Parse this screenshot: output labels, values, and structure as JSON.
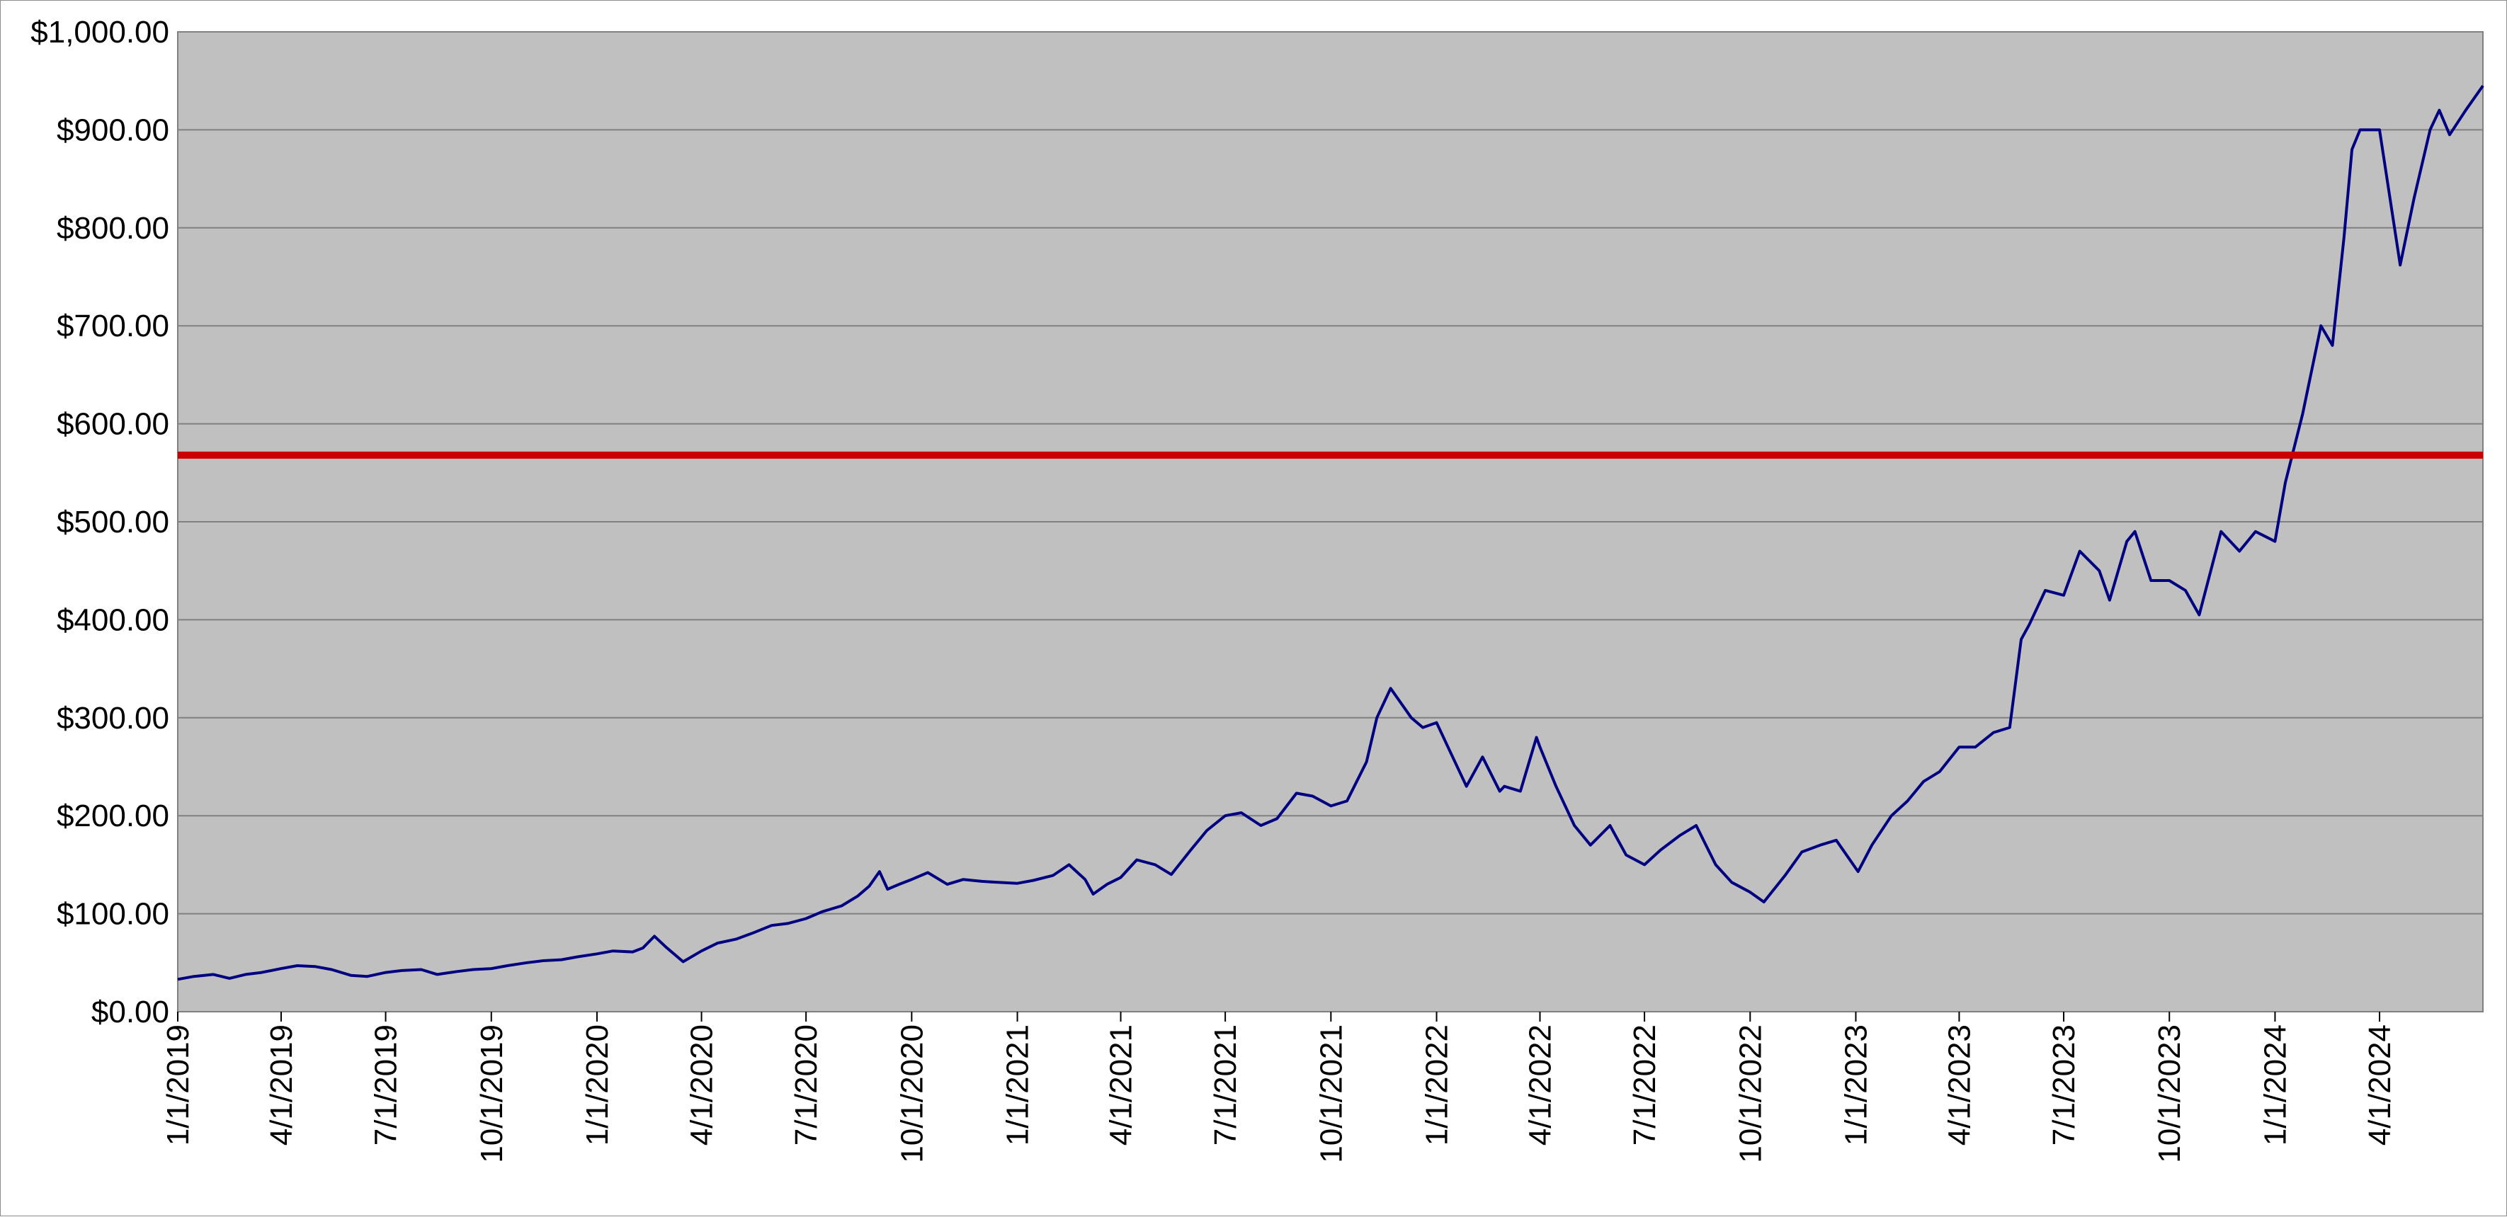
{
  "chart_data": {
    "type": "line",
    "title": "",
    "xlabel": "",
    "ylabel": "",
    "x_range": [
      "1/1/2019",
      "6/30/2024"
    ],
    "ylim": [
      0,
      1000
    ],
    "y_ticks": [
      0,
      100,
      200,
      300,
      400,
      500,
      600,
      700,
      800,
      900,
      1000
    ],
    "y_tick_labels": [
      "$0.00",
      "$100.00",
      "$200.00",
      "$300.00",
      "$400.00",
      "$500.00",
      "$600.00",
      "$700.00",
      "$800.00",
      "$900.00",
      "$1,000.00"
    ],
    "x_tick_labels": [
      "1/1/2019",
      "4/1/2019",
      "7/1/2019",
      "10/1/2019",
      "1/1/2020",
      "4/1/2020",
      "7/1/2020",
      "10/1/2020",
      "1/1/2021",
      "4/1/2021",
      "7/1/2021",
      "10/1/2021",
      "1/1/2022",
      "4/1/2022",
      "7/1/2022",
      "10/1/2022",
      "1/1/2023",
      "4/1/2023",
      "7/1/2023",
      "10/1/2023",
      "1/1/2024",
      "4/1/2024"
    ],
    "grid": "horizontal",
    "legend": "none",
    "plot_background": "#C0C0C0",
    "series": [
      {
        "color": "#000080",
        "points": [
          [
            "1/1/2019",
            33
          ],
          [
            "1/15/2019",
            36
          ],
          [
            "2/1/2019",
            38
          ],
          [
            "2/15/2019",
            34
          ],
          [
            "3/1/2019",
            38
          ],
          [
            "3/15/2019",
            40
          ],
          [
            "4/1/2019",
            44
          ],
          [
            "4/15/2019",
            47
          ],
          [
            "5/1/2019",
            46
          ],
          [
            "5/15/2019",
            43
          ],
          [
            "6/1/2019",
            37
          ],
          [
            "6/15/2019",
            36
          ],
          [
            "7/1/2019",
            40
          ],
          [
            "7/15/2019",
            42
          ],
          [
            "8/1/2019",
            43
          ],
          [
            "8/15/2019",
            38
          ],
          [
            "9/1/2019",
            41
          ],
          [
            "9/15/2019",
            43
          ],
          [
            "10/1/2019",
            44
          ],
          [
            "10/15/2019",
            47
          ],
          [
            "11/1/2019",
            50
          ],
          [
            "11/15/2019",
            52
          ],
          [
            "12/1/2019",
            53
          ],
          [
            "12/15/2019",
            56
          ],
          [
            "1/1/2020",
            59
          ],
          [
            "1/15/2020",
            62
          ],
          [
            "2/1/2020",
            61
          ],
          [
            "2/10/2020",
            65
          ],
          [
            "2/20/2020",
            77
          ],
          [
            "3/1/2020",
            66
          ],
          [
            "3/16/2020",
            51
          ],
          [
            "4/1/2020",
            62
          ],
          [
            "4/15/2020",
            70
          ],
          [
            "5/1/2020",
            74
          ],
          [
            "5/15/2020",
            80
          ],
          [
            "6/1/2020",
            88
          ],
          [
            "6/15/2020",
            90
          ],
          [
            "7/1/2020",
            95
          ],
          [
            "7/15/2020",
            102
          ],
          [
            "8/1/2020",
            108
          ],
          [
            "8/15/2020",
            118
          ],
          [
            "8/25/2020",
            128
          ],
          [
            "9/3/2020",
            143
          ],
          [
            "9/10/2020",
            125
          ],
          [
            "9/20/2020",
            130
          ],
          [
            "10/1/2020",
            135
          ],
          [
            "10/15/2020",
            142
          ],
          [
            "11/1/2020",
            130
          ],
          [
            "11/15/2020",
            135
          ],
          [
            "12/1/2020",
            133
          ],
          [
            "12/15/2020",
            132
          ],
          [
            "1/1/2021",
            131
          ],
          [
            "1/15/2021",
            134
          ],
          [
            "2/1/2021",
            139
          ],
          [
            "2/15/2021",
            150
          ],
          [
            "3/1/2021",
            135
          ],
          [
            "3/8/2021",
            120
          ],
          [
            "3/20/2021",
            130
          ],
          [
            "4/1/2021",
            137
          ],
          [
            "4/15/2021",
            155
          ],
          [
            "5/1/2021",
            150
          ],
          [
            "5/15/2021",
            140
          ],
          [
            "6/1/2021",
            165
          ],
          [
            "6/15/2021",
            185
          ],
          [
            "7/1/2021",
            200
          ],
          [
            "7/15/2021",
            203
          ],
          [
            "8/1/2021",
            190
          ],
          [
            "8/15/2021",
            197
          ],
          [
            "9/1/2021",
            223
          ],
          [
            "9/15/2021",
            220
          ],
          [
            "10/1/2021",
            210
          ],
          [
            "10/15/2021",
            215
          ],
          [
            "11/1/2021",
            255
          ],
          [
            "11/10/2021",
            300
          ],
          [
            "11/22/2021",
            330
          ],
          [
            "12/1/2021",
            315
          ],
          [
            "12/10/2021",
            300
          ],
          [
            "12/20/2021",
            290
          ],
          [
            "1/1/2022",
            295
          ],
          [
            "1/15/2022",
            260
          ],
          [
            "1/27/2022",
            230
          ],
          [
            "2/10/2022",
            260
          ],
          [
            "2/25/2022",
            225
          ],
          [
            "3/1/2022",
            230
          ],
          [
            "3/15/2022",
            225
          ],
          [
            "3/29/2022",
            280
          ],
          [
            "4/1/2022",
            270
          ],
          [
            "4/15/2022",
            230
          ],
          [
            "5/1/2022",
            190
          ],
          [
            "5/15/2022",
            170
          ],
          [
            "6/1/2022",
            190
          ],
          [
            "6/15/2022",
            160
          ],
          [
            "7/1/2022",
            150
          ],
          [
            "7/15/2022",
            165
          ],
          [
            "8/1/2022",
            180
          ],
          [
            "8/15/2022",
            190
          ],
          [
            "9/1/2022",
            150
          ],
          [
            "9/15/2022",
            132
          ],
          [
            "10/1/2022",
            122
          ],
          [
            "10/13/2022",
            112
          ],
          [
            "11/1/2022",
            140
          ],
          [
            "11/15/2022",
            163
          ],
          [
            "12/1/2022",
            170
          ],
          [
            "12/15/2022",
            175
          ],
          [
            "1/3/2023",
            143
          ],
          [
            "1/15/2023",
            170
          ],
          [
            "2/1/2023",
            200
          ],
          [
            "2/15/2023",
            215
          ],
          [
            "3/1/2023",
            235
          ],
          [
            "3/15/2023",
            245
          ],
          [
            "4/1/2023",
            270
          ],
          [
            "4/15/2023",
            270
          ],
          [
            "5/1/2023",
            285
          ],
          [
            "5/15/2023",
            290
          ],
          [
            "5/25/2023",
            380
          ],
          [
            "6/1/2023",
            395
          ],
          [
            "6/15/2023",
            430
          ],
          [
            "7/1/2023",
            425
          ],
          [
            "7/15/2023",
            470
          ],
          [
            "8/1/2023",
            450
          ],
          [
            "8/10/2023",
            420
          ],
          [
            "8/25/2023",
            480
          ],
          [
            "9/1/2023",
            490
          ],
          [
            "9/15/2023",
            440
          ],
          [
            "10/1/2023",
            440
          ],
          [
            "10/15/2023",
            430
          ],
          [
            "10/27/2023",
            405
          ],
          [
            "11/15/2023",
            490
          ],
          [
            "12/1/2023",
            470
          ],
          [
            "12/15/2023",
            490
          ],
          [
            "1/1/2024",
            480
          ],
          [
            "1/10/2024",
            540
          ],
          [
            "1/25/2024",
            610
          ],
          [
            "2/10/2024",
            700
          ],
          [
            "2/20/2024",
            680
          ],
          [
            "3/1/2024",
            790
          ],
          [
            "3/8/2024",
            880
          ],
          [
            "3/15/2024",
            900
          ],
          [
            "4/1/2024",
            900
          ],
          [
            "4/19/2024",
            762
          ],
          [
            "5/1/2024",
            830
          ],
          [
            "5/15/2024",
            900
          ],
          [
            "5/23/2024",
            920
          ],
          [
            "6/1/2024",
            895
          ],
          [
            "6/15/2024",
            920
          ],
          [
            "6/30/2024",
            945
          ]
        ]
      }
    ],
    "reference_line": {
      "value": 568,
      "color": "#CC0000"
    }
  }
}
